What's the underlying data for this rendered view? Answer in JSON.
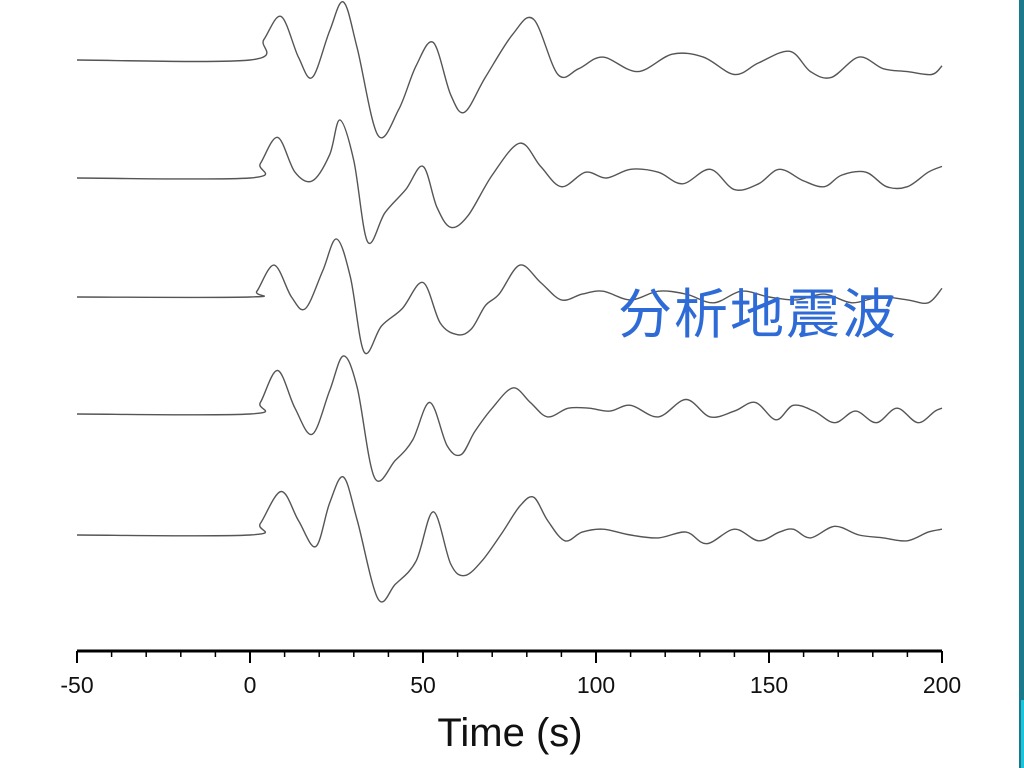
{
  "overlay_text": "分析地震波",
  "colors": {
    "trace": "#555555",
    "axis": "#000000",
    "overlay_text": "#2e6bd6",
    "right_rule": "#1a7a8c",
    "right_rule_accent": "#19c6de"
  },
  "chart_data": {
    "type": "line",
    "title": "",
    "xlabel": "Time (s)",
    "ylabel": "",
    "xlim": [
      -50,
      200
    ],
    "xticks": [
      -50,
      0,
      50,
      100,
      150,
      200
    ],
    "xtick_labels": [
      "-50",
      "0",
      "50",
      "100",
      "150",
      "200"
    ],
    "minor_tick_step": 10,
    "grid": false,
    "legend": "none",
    "amplitude_unit_note": "",
    "series": [
      {
        "x": [
          -50,
          0,
          4,
          9,
          14,
          18,
          23,
          27,
          31,
          37,
          43,
          48,
          53,
          58,
          62,
          68,
          76,
          82,
          89,
          95,
          102,
          112,
          122,
          131,
          140,
          147,
          156,
          162,
          168,
          176,
          183,
          190,
          197,
          200
        ],
        "y": [
          0,
          0,
          0.35,
          0.75,
          0.05,
          -0.3,
          0.5,
          1.0,
          0.2,
          -1.3,
          -0.85,
          -0.1,
          0.3,
          -0.6,
          -0.9,
          -0.3,
          0.45,
          0.7,
          -0.25,
          -0.15,
          0.05,
          -0.2,
          0.1,
          0.05,
          -0.25,
          -0.05,
          0.15,
          -0.2,
          -0.3,
          0.05,
          -0.15,
          -0.2,
          -0.25,
          -0.1
        ]
      },
      {
        "x": [
          -50,
          0,
          3,
          8,
          13,
          18,
          23,
          26,
          30,
          34,
          39,
          45,
          50,
          54,
          58,
          63,
          70,
          78,
          84,
          90,
          97,
          103,
          110,
          118,
          125,
          133,
          140,
          147,
          153,
          160,
          166,
          171,
          178,
          184,
          190,
          196,
          200
        ],
        "y": [
          0,
          0,
          0.25,
          0.7,
          0.1,
          -0.05,
          0.4,
          1.0,
          0.3,
          -1.1,
          -0.6,
          -0.2,
          0.2,
          -0.5,
          -0.85,
          -0.65,
          0.05,
          0.6,
          0.2,
          -0.15,
          0.1,
          0.0,
          0.15,
          0.1,
          -0.1,
          0.15,
          -0.2,
          -0.1,
          0.15,
          -0.05,
          -0.15,
          0.05,
          0.1,
          -0.15,
          -0.15,
          0.1,
          0.2
        ]
      },
      {
        "x": [
          -50,
          0,
          2,
          7,
          12,
          16,
          21,
          25,
          29,
          33,
          38,
          44,
          50,
          55,
          60,
          64,
          68,
          72,
          78,
          84,
          90,
          96,
          102,
          110,
          118,
          126,
          134,
          142,
          150,
          158,
          166,
          174,
          182,
          190,
          196,
          200
        ],
        "y": [
          0,
          0,
          0.1,
          0.55,
          0.0,
          -0.2,
          0.45,
          1.0,
          0.35,
          -0.95,
          -0.5,
          -0.2,
          0.25,
          -0.45,
          -0.65,
          -0.55,
          -0.15,
          0.05,
          0.55,
          0.25,
          -0.05,
          0.05,
          0.1,
          -0.05,
          0.1,
          0.05,
          -0.1,
          0.1,
          0.0,
          -0.05,
          0.05,
          -0.1,
          0.0,
          -0.05,
          -0.1,
          0.15
        ]
      },
      {
        "x": [
          -50,
          0,
          3,
          8,
          13,
          18,
          23,
          27,
          31,
          36,
          42,
          47,
          52,
          57,
          61,
          65,
          70,
          76,
          81,
          86,
          92,
          98,
          104,
          110,
          118,
          126,
          133,
          140,
          146,
          152,
          157,
          163,
          169,
          175,
          181,
          187,
          193,
          198,
          200
        ],
        "y": [
          0,
          0,
          0.2,
          0.75,
          0.1,
          -0.35,
          0.4,
          1.0,
          0.45,
          -1.1,
          -0.8,
          -0.45,
          0.2,
          -0.55,
          -0.7,
          -0.3,
          0.1,
          0.45,
          0.2,
          -0.05,
          0.1,
          0.1,
          0.05,
          0.15,
          -0.05,
          0.25,
          -0.05,
          0.05,
          0.2,
          -0.1,
          0.15,
          0.05,
          -0.15,
          0.05,
          -0.15,
          0.1,
          -0.15,
          0.05,
          0.1
        ]
      },
      {
        "x": [
          -50,
          0,
          3,
          9,
          14,
          19,
          23,
          27,
          31,
          37,
          42,
          48,
          53,
          58,
          62,
          67,
          73,
          78,
          82,
          86,
          91,
          96,
          102,
          110,
          118,
          126,
          132,
          140,
          147,
          153,
          157,
          162,
          169,
          176,
          183,
          190,
          196,
          200
        ],
        "y": [
          0,
          0,
          0.2,
          0.75,
          0.25,
          -0.2,
          0.55,
          1.0,
          0.25,
          -1.1,
          -0.85,
          -0.45,
          0.4,
          -0.5,
          -0.7,
          -0.45,
          0.05,
          0.5,
          0.65,
          0.25,
          -0.1,
          0.05,
          0.1,
          0.0,
          -0.05,
          0.05,
          -0.15,
          0.1,
          -0.1,
          0.05,
          0.1,
          -0.05,
          0.15,
          0.0,
          -0.05,
          -0.1,
          0.05,
          0.1
        ]
      }
    ]
  }
}
